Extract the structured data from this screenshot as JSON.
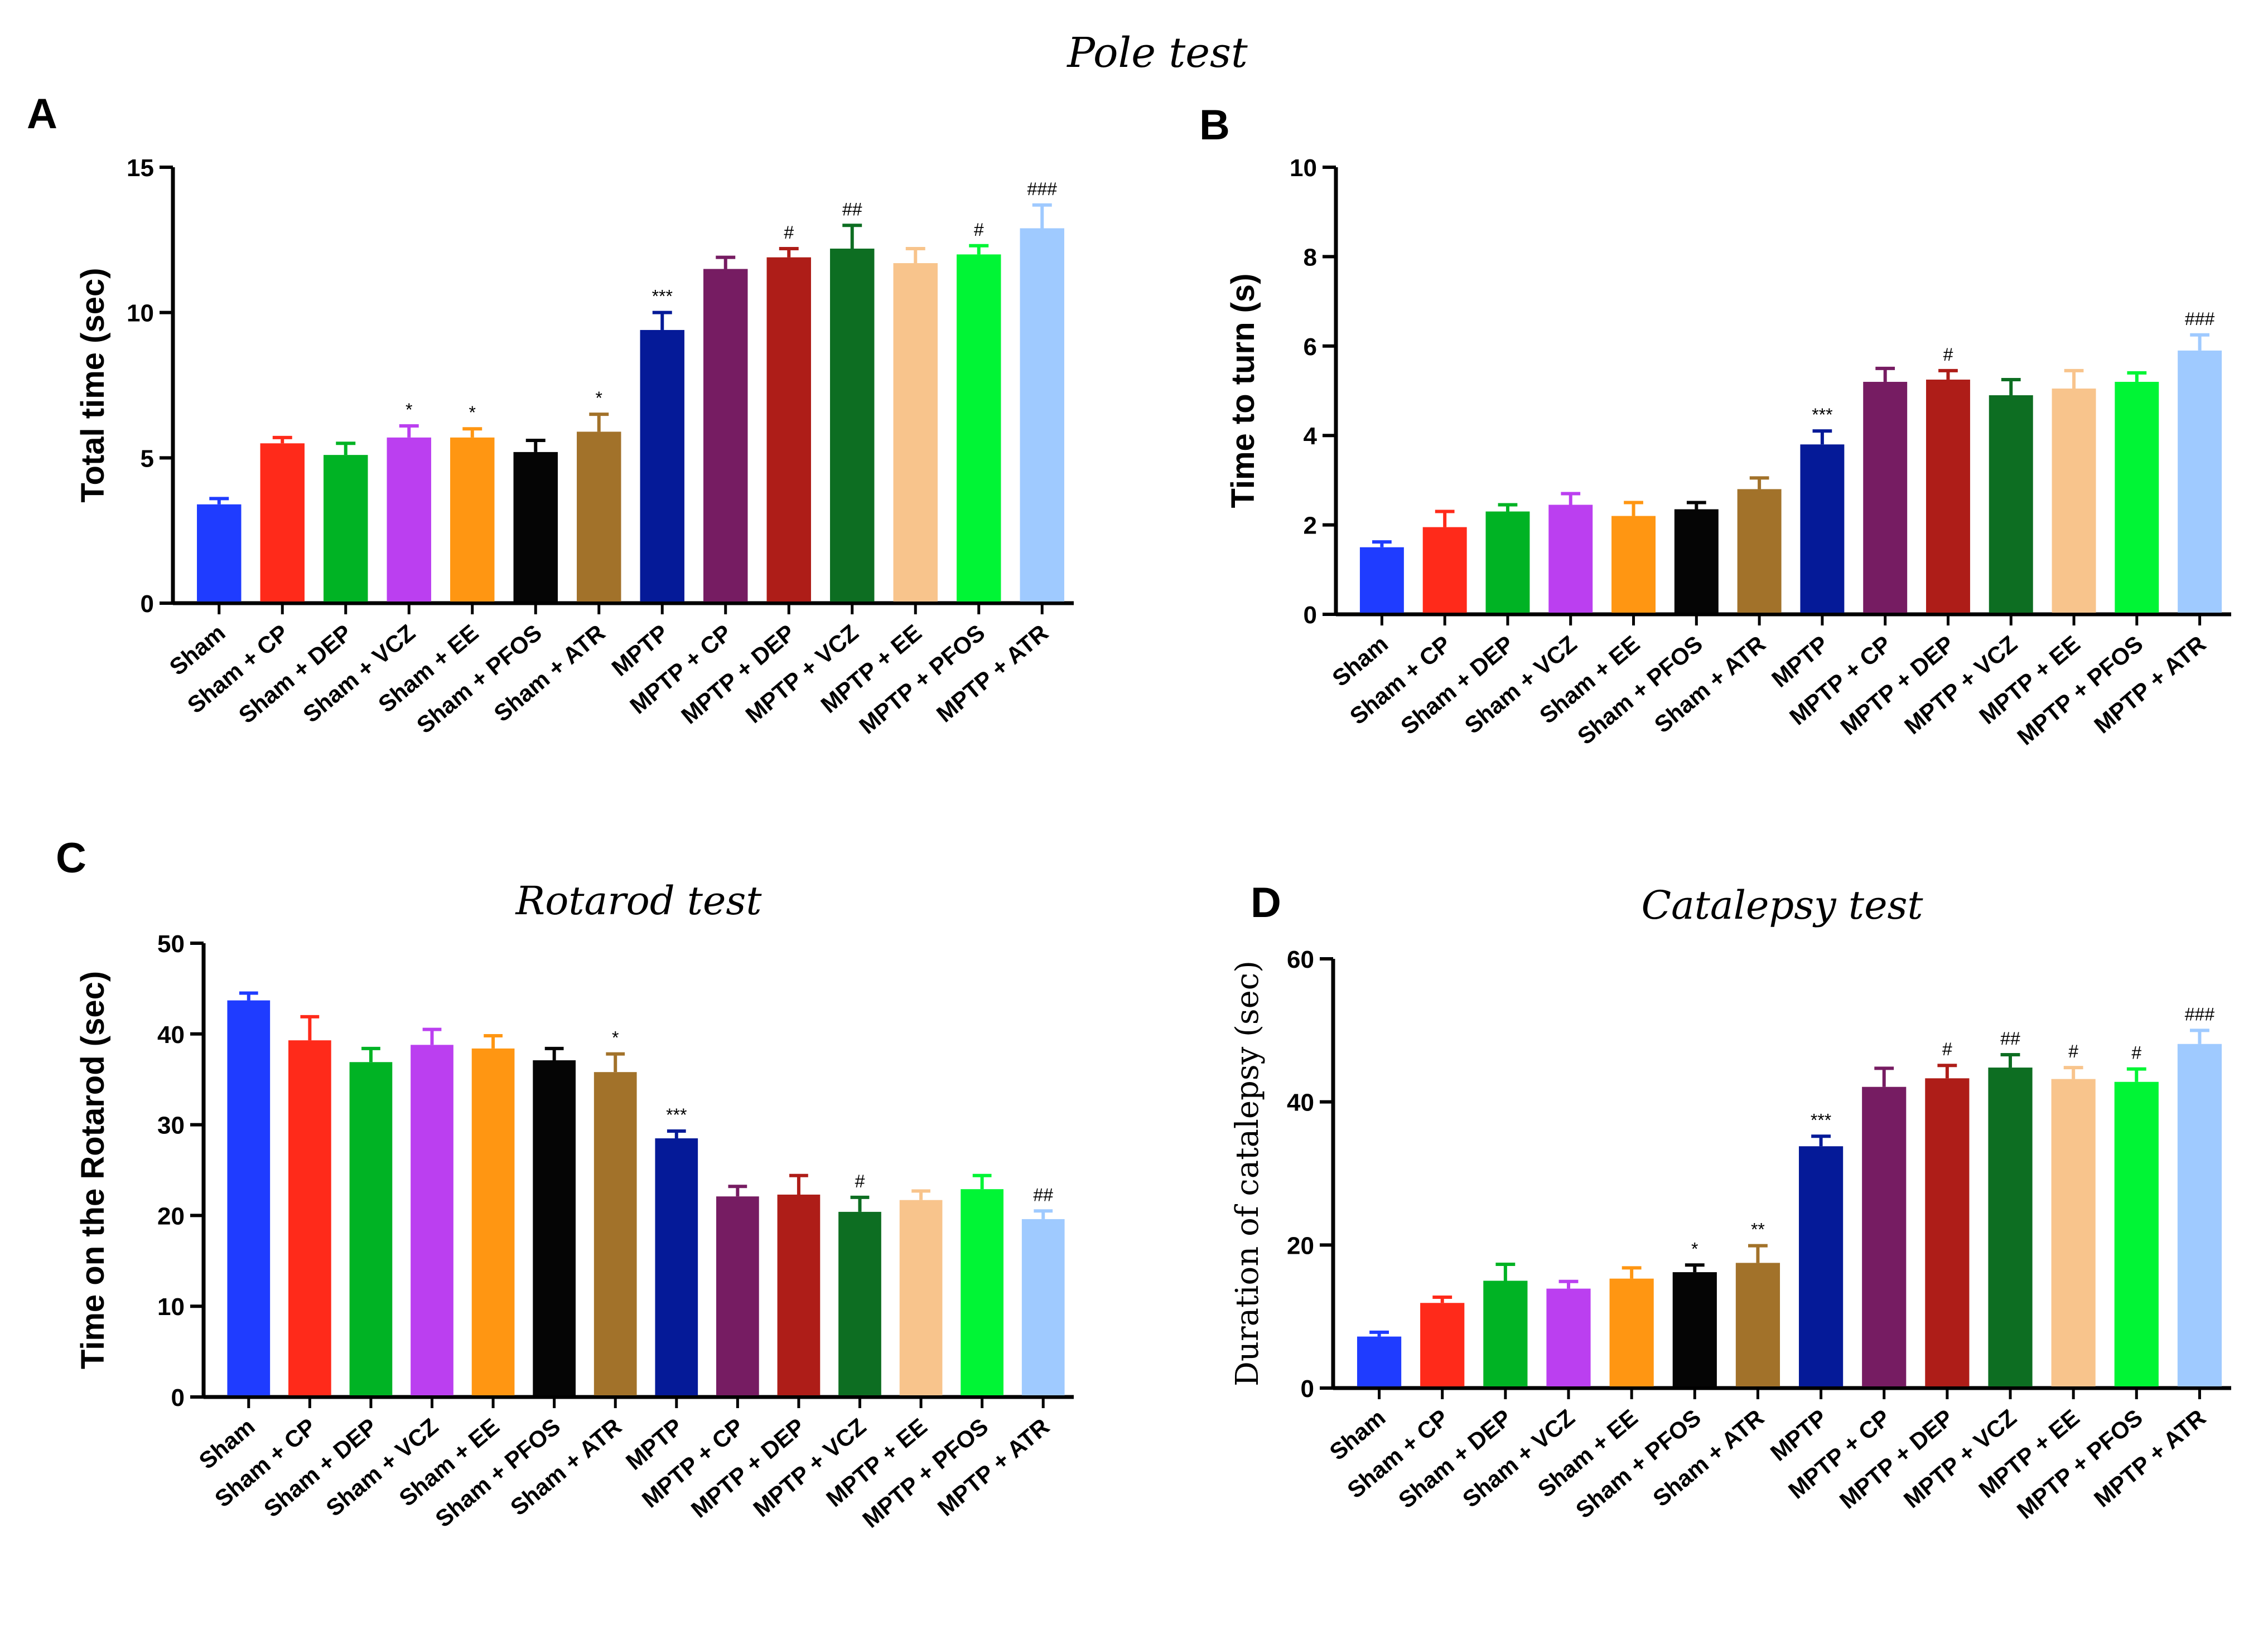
{
  "figure": {
    "title": "Pole test",
    "colors": [
      "#1f3cff",
      "#ff2a1a",
      "#00b324",
      "#bb3ff0",
      "#ff9612",
      "#050505",
      "#a2722a",
      "#051a98",
      "#761c62",
      "#ae1d18",
      "#0d6e22",
      "#f8c48c",
      "#00f535",
      "#9fcaff"
    ]
  },
  "chart_data": [
    {
      "panel": "A",
      "type": "bar",
      "title": "",
      "xlabel": "",
      "ylabel": "Total time (sec)",
      "ylim": [
        0,
        15
      ],
      "yticks": [
        0,
        5,
        10,
        15
      ],
      "categories": [
        "Sham",
        "Sham + CP",
        "Sham + DEP",
        "Sham + VCZ",
        "Sham + EE",
        "Sham + PFOS",
        "Sham + ATR",
        "MPTP",
        "MPTP + CP",
        "MPTP + DEP",
        "MPTP + VCZ",
        "MPTP + EE",
        "MPTP + PFOS",
        "MPTP + ATR"
      ],
      "values": [
        3.4,
        5.5,
        5.1,
        5.7,
        5.7,
        5.2,
        5.9,
        9.4,
        11.5,
        11.9,
        12.2,
        11.7,
        12.0,
        12.9
      ],
      "errors": [
        0.2,
        0.2,
        0.4,
        0.4,
        0.3,
        0.4,
        0.6,
        0.6,
        0.4,
        0.3,
        0.8,
        0.5,
        0.3,
        0.8
      ],
      "significance": [
        "",
        "",
        "",
        "*",
        "*",
        "",
        "*",
        "***",
        "",
        "#",
        "##",
        "",
        "#",
        "###"
      ]
    },
    {
      "panel": "B",
      "type": "bar",
      "title": "",
      "xlabel": "",
      "ylabel": "Time to turn (s)",
      "ylim": [
        0,
        10
      ],
      "yticks": [
        0,
        2,
        4,
        6,
        8,
        10
      ],
      "categories": [
        "Sham",
        "Sham + CP",
        "Sham + DEP",
        "Sham + VCZ",
        "Sham + EE",
        "Sham + PFOS",
        "Sham + ATR",
        "MPTP",
        "MPTP + CP",
        "MPTP + DEP",
        "MPTP + VCZ",
        "MPTP + EE",
        "MPTP + PFOS",
        "MPTP + ATR"
      ],
      "values": [
        1.5,
        1.95,
        2.3,
        2.45,
        2.2,
        2.35,
        2.8,
        3.8,
        5.2,
        5.25,
        4.9,
        5.05,
        5.2,
        5.9
      ],
      "errors": [
        0.12,
        0.35,
        0.15,
        0.25,
        0.3,
        0.15,
        0.25,
        0.3,
        0.3,
        0.2,
        0.35,
        0.4,
        0.2,
        0.35
      ],
      "significance": [
        "",
        "",
        "",
        "",
        "",
        "",
        "",
        "***",
        "",
        "#",
        "",
        "",
        "",
        "###"
      ]
    },
    {
      "panel": "C",
      "type": "bar",
      "title": "Rotarod test",
      "xlabel": "",
      "ylabel": "Time on the Rotarod (sec)",
      "ylim": [
        0,
        50
      ],
      "yticks": [
        0,
        10,
        20,
        30,
        40,
        50
      ],
      "categories": [
        "Sham",
        "Sham + CP",
        "Sham + DEP",
        "Sham + VCZ",
        "Sham + EE",
        "Sham + PFOS",
        "Sham + ATR",
        "MPTP",
        "MPTP + CP",
        "MPTP + DEP",
        "MPTP + VCZ",
        "MPTP + EE",
        "MPTP + PFOS",
        "MPTP + ATR"
      ],
      "values": [
        43.7,
        39.3,
        36.9,
        38.8,
        38.4,
        37.1,
        35.8,
        28.5,
        22.1,
        22.3,
        20.4,
        21.7,
        22.9,
        19.6
      ],
      "errors": [
        0.8,
        2.6,
        1.5,
        1.7,
        1.4,
        1.3,
        2.0,
        0.8,
        1.1,
        2.1,
        1.6,
        1.0,
        1.5,
        0.9
      ],
      "significance": [
        "",
        "",
        "",
        "",
        "",
        "",
        "*",
        "***",
        "",
        "",
        "#",
        "",
        "",
        "##"
      ]
    },
    {
      "panel": "D",
      "type": "bar",
      "title": "Catalepsy test",
      "xlabel": "",
      "ylabel": "Duration of catalepsy (sec)",
      "ylim": [
        0,
        60
      ],
      "yticks": [
        0,
        20,
        40,
        60
      ],
      "categories": [
        "Sham",
        "Sham + CP",
        "Sham + DEP",
        "Sham + VCZ",
        "Sham + EE",
        "Sham + PFOS",
        "Sham + ATR",
        "MPTP",
        "MPTP + CP",
        "MPTP + DEP",
        "MPTP + VCZ",
        "MPTP + EE",
        "MPTP + PFOS",
        "MPTP + ATR"
      ],
      "values": [
        7.2,
        11.9,
        15.0,
        13.9,
        15.3,
        16.2,
        17.5,
        33.8,
        42.1,
        43.3,
        44.8,
        43.2,
        42.8,
        48.1
      ],
      "errors": [
        0.6,
        0.8,
        2.3,
        1.0,
        1.5,
        1.0,
        2.4,
        1.4,
        2.6,
        1.8,
        1.8,
        1.6,
        1.8,
        1.9
      ],
      "significance": [
        "",
        "",
        "",
        "",
        "",
        "*",
        "**",
        "***",
        "",
        "#",
        "##",
        "#",
        "#",
        "###"
      ]
    }
  ]
}
